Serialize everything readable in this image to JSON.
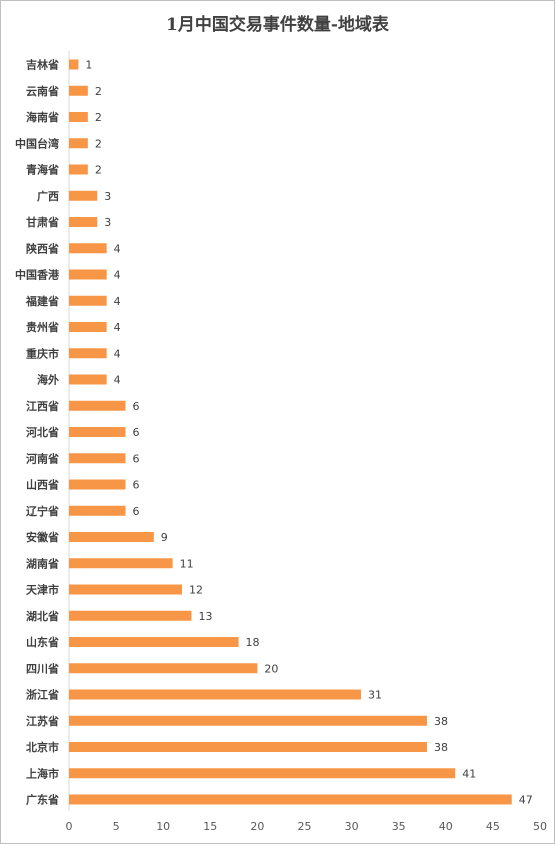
{
  "chart_data": {
    "type": "bar",
    "orientation": "horizontal",
    "title": "1月中国交易事件数量-地域表",
    "xlabel": "",
    "ylabel": "",
    "xlim": [
      0,
      50
    ],
    "x_ticks": [
      0,
      5,
      10,
      15,
      20,
      25,
      30,
      35,
      40,
      45,
      50
    ],
    "grid": false,
    "legend": "none",
    "bar_color": "#f79646",
    "categories": [
      "吉林省",
      "云南省",
      "海南省",
      "中国台湾",
      "青海省",
      "广西",
      "甘肃省",
      "陕西省",
      "中国香港",
      "福建省",
      "贵州省",
      "重庆市",
      "海外",
      "江西省",
      "河北省",
      "河南省",
      "山西省",
      "辽宁省",
      "安徽省",
      "湖南省",
      "天津市",
      "湖北省",
      "山东省",
      "四川省",
      "浙江省",
      "江苏省",
      "北京市",
      "上海市",
      "广东省"
    ],
    "values": [
      1,
      2,
      2,
      2,
      2,
      3,
      3,
      4,
      4,
      4,
      4,
      4,
      4,
      6,
      6,
      6,
      6,
      6,
      9,
      11,
      12,
      13,
      18,
      20,
      31,
      38,
      38,
      41,
      47
    ]
  }
}
